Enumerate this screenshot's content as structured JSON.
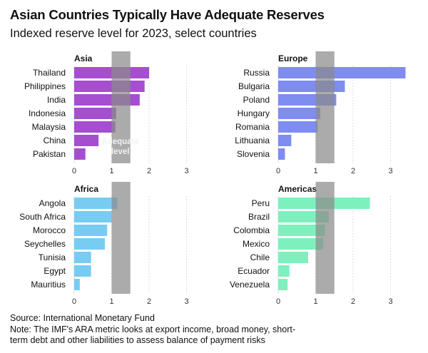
{
  "header": {
    "title": "Asian Countries Typically Have Adequate Reserves",
    "subtitle": "Indexed reserve level for 2023, select countries"
  },
  "footer": {
    "source": "Source: International Monetary Fund",
    "note_line1": "Note: The IMF's ARA metric looks at export income, broad money, short-",
    "note_line2": "term debt and other liabilities to assess balance of payment risks"
  },
  "colors": {
    "asia": "#a54fd0",
    "europe": "#7f8cf0",
    "africa": "#78ccf2",
    "americas": "#7ef0be",
    "adequate_band": "#8a8a8a"
  },
  "chart_data": [
    {
      "type": "bar",
      "title": "Asia",
      "categories": [
        "Thailand",
        "Philippines",
        "India",
        "Indonesia",
        "Malaysia",
        "China",
        "Pakistan"
      ],
      "values": [
        2.0,
        1.88,
        1.75,
        1.12,
        1.1,
        0.65,
        0.3
      ],
      "xlim": [
        0,
        3.5
      ],
      "xticks": [
        0,
        1,
        2,
        3
      ],
      "adequate_band": [
        1.0,
        1.5
      ],
      "annotation": "Adequate level",
      "color": "#a54fd0"
    },
    {
      "type": "bar",
      "title": "Europe",
      "categories": [
        "Russia",
        "Bulgaria",
        "Poland",
        "Hungary",
        "Romania",
        "Lithuania",
        "Slovenia"
      ],
      "values": [
        3.4,
        1.78,
        1.55,
        1.12,
        1.05,
        0.35,
        0.18
      ],
      "xlim": [
        0,
        3.5
      ],
      "xticks": [
        0,
        1,
        2,
        3
      ],
      "adequate_band": [
        1.0,
        1.5
      ],
      "color": "#7f8cf0"
    },
    {
      "type": "bar",
      "title": "Africa",
      "categories": [
        "Angola",
        "South Africa",
        "Morocco",
        "Seychelles",
        "Tunisia",
        "Egypt",
        "Mauritius"
      ],
      "values": [
        1.15,
        1.0,
        0.88,
        0.82,
        0.45,
        0.45,
        0.15
      ],
      "xlim": [
        0,
        3.5
      ],
      "xticks": [
        0,
        1,
        2,
        3
      ],
      "adequate_band": [
        1.0,
        1.5
      ],
      "color": "#78ccf2"
    },
    {
      "type": "bar",
      "title": "Americas",
      "categories": [
        "Peru",
        "Brazil",
        "Colombia",
        "Mexico",
        "Chile",
        "Ecuador",
        "Venezuela"
      ],
      "values": [
        2.45,
        1.35,
        1.25,
        1.2,
        0.8,
        0.3,
        0.25
      ],
      "xlim": [
        0,
        3.5
      ],
      "xticks": [
        0,
        1,
        2,
        3
      ],
      "adequate_band": [
        1.0,
        1.5
      ],
      "color": "#7ef0be"
    }
  ]
}
